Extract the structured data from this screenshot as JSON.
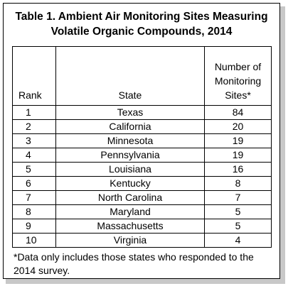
{
  "title": {
    "line1": "Table 1. Ambient Air Monitoring Sites Measuring",
    "line2": "Volatile Organic Compounds, 2014"
  },
  "columns": {
    "rank": "Rank",
    "state": "State",
    "count_line1": "Number of",
    "count_line2": "Monitoring",
    "count_line3": "Sites*"
  },
  "rows": [
    {
      "rank": "1",
      "state": "Texas",
      "count": "84"
    },
    {
      "rank": "2",
      "state": "California",
      "count": "20"
    },
    {
      "rank": "3",
      "state": "Minnesota",
      "count": "19"
    },
    {
      "rank": "4",
      "state": "Pennsylvania",
      "count": "19"
    },
    {
      "rank": "5",
      "state": "Louisiana",
      "count": "16"
    },
    {
      "rank": "6",
      "state": "Kentucky",
      "count": "8"
    },
    {
      "rank": "7",
      "state": "North Carolina",
      "count": "7"
    },
    {
      "rank": "8",
      "state": "Maryland",
      "count": "5"
    },
    {
      "rank": "9",
      "state": "Massachusetts",
      "count": "5"
    },
    {
      "rank": "10",
      "state": "Virginia",
      "count": "4"
    }
  ],
  "footnote": "*Data only includes those states who responded to the 2014 survey."
}
